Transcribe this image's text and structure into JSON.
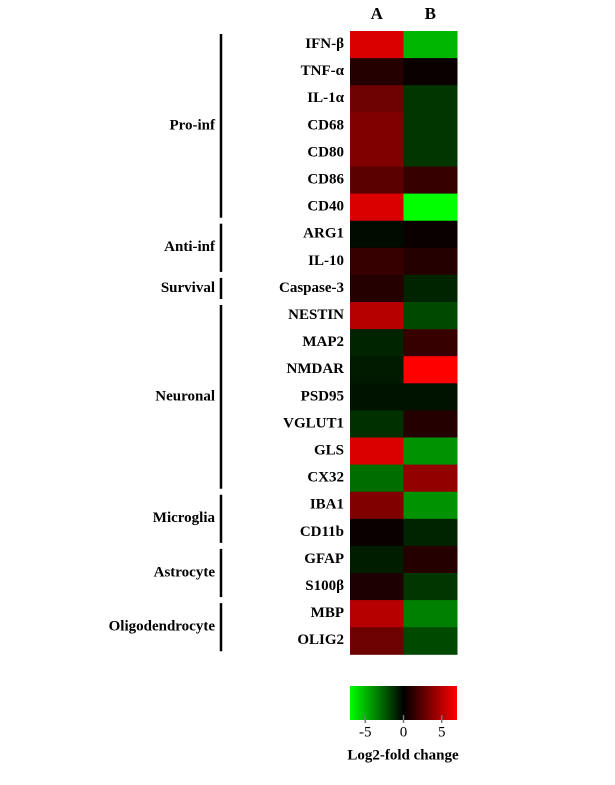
{
  "chart_data": {
    "type": "heatmap",
    "groups": [
      {
        "name": "Pro-inf",
        "categories": [
          "IFN-β",
          "TNF-α",
          "IL-1α",
          "CD68",
          "CD80",
          "CD86",
          "CD40"
        ]
      },
      {
        "name": "Anti-inf",
        "categories": [
          "ARG1",
          "IL-10"
        ]
      },
      {
        "name": "Survival",
        "categories": [
          "Caspase-3"
        ]
      },
      {
        "name": "Neuronal",
        "categories": [
          "NESTIN",
          "MAP2",
          "NMDAR",
          "PSD95",
          "VGLUT1",
          "GLS",
          "CX32"
        ]
      },
      {
        "name": "Microglia",
        "categories": [
          "IBA1",
          "CD11b"
        ]
      },
      {
        "name": "Astrocyte",
        "categories": [
          "GFAP",
          "S100β"
        ]
      },
      {
        "name": "Oligodendrocyte",
        "categories": [
          "MBP",
          "OLIG2"
        ]
      }
    ],
    "series": [
      {
        "name": "A",
        "values": [
          6,
          1,
          3,
          3.5,
          3.5,
          2.5,
          6,
          -0.3,
          1.5,
          1,
          5,
          -1,
          -0.7,
          -0.5,
          -1.3,
          6,
          -3,
          3.5,
          0.3,
          -0.8,
          0.8,
          5,
          3
        ]
      },
      {
        "name": "B",
        "values": [
          -5,
          0.3,
          -1.5,
          -1.5,
          -1.5,
          1.5,
          -7,
          0.3,
          1,
          -1,
          -2,
          1.5,
          7,
          -0.5,
          1,
          -4,
          4,
          -4,
          -1,
          1,
          -1.5,
          -3.5,
          -2
        ]
      }
    ],
    "colorscale": [
      "#00ff00",
      "#000000",
      "#ff0000"
    ],
    "clim": [
      -7,
      7
    ],
    "cticks": [
      -5,
      0,
      5
    ],
    "colorbar_title": "Log2-fold change"
  }
}
